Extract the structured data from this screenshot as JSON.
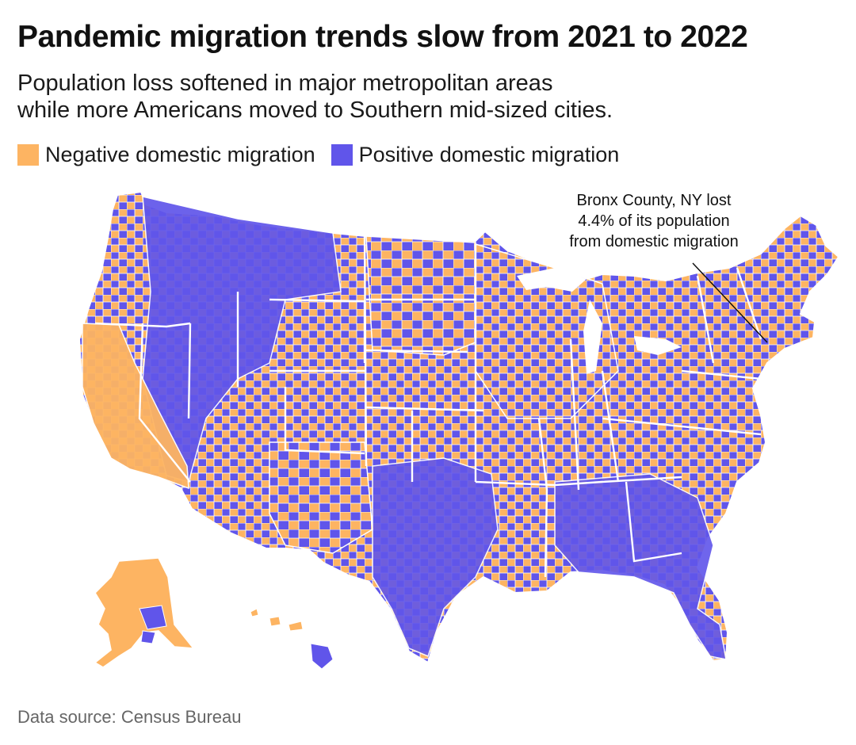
{
  "title": "Pandemic migration trends slow from 2021 to 2022",
  "subtitle": {
    "line1": "Population loss softened in major metropolitan areas",
    "line2": "while more Americans moved to Southern mid-sized cities."
  },
  "legend": {
    "negative": {
      "label": "Negative domestic migration",
      "color": "#fdb462"
    },
    "positive": {
      "label": "Positive domestic migration",
      "color": "#6055ea"
    }
  },
  "annotation": {
    "line1": "Bronx County, NY lost",
    "line2": "4.4% of its population",
    "line3": "from domestic migration"
  },
  "source": "Data source: Census Bureau",
  "colors": {
    "negative": "#fdb462",
    "positive": "#6055ea",
    "border": "#ffffff",
    "leader": "#111111"
  }
}
